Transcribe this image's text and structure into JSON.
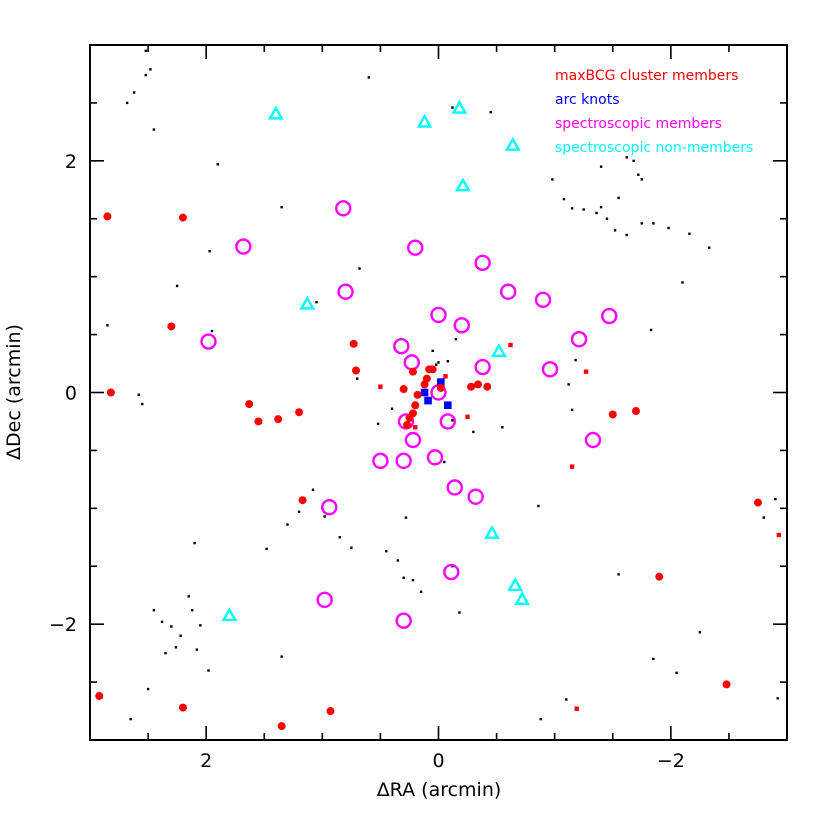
{
  "chart_data": {
    "type": "scatter",
    "xlabel": "ΔRA (arcmin)",
    "ylabel": "ΔDec (arcmin)",
    "xlim": [
      3,
      -3
    ],
    "ylim": [
      -3,
      3
    ],
    "x_ticks": [
      2,
      0,
      -2
    ],
    "y_ticks": [
      2,
      0,
      -2
    ],
    "x_tick_labels": [
      "2",
      "0",
      "−2"
    ],
    "y_tick_labels": [
      "2",
      "0",
      "−2"
    ],
    "grid": false,
    "legend_position": "top-right",
    "colors": {
      "maxbcg": "#ff0000",
      "arc": "#0000ff",
      "spec_members": "#ff00ff",
      "spec_nonmembers": "#00ffff",
      "field": "#000000"
    },
    "series": [
      {
        "name": "maxBCG cluster members",
        "marker": "filled-circle",
        "color": "#ff0000",
        "points": [
          [
            2.85,
            1.52
          ],
          [
            2.2,
            1.51
          ],
          [
            2.3,
            0.57
          ],
          [
            2.82,
            0.0
          ],
          [
            1.63,
            -0.1
          ],
          [
            1.55,
            -0.25
          ],
          [
            1.38,
            -0.23
          ],
          [
            1.2,
            -0.17
          ],
          [
            0.73,
            0.42
          ],
          [
            0.71,
            0.19
          ],
          [
            1.17,
            -0.93
          ],
          [
            2.92,
            -2.62
          ],
          [
            2.2,
            -2.72
          ],
          [
            1.35,
            -2.88
          ],
          [
            0.93,
            -2.75
          ],
          [
            0.3,
            0.03
          ],
          [
            0.22,
            0.18
          ],
          [
            0.18,
            -0.02
          ],
          [
            0.2,
            -0.11
          ],
          [
            0.22,
            -0.18
          ],
          [
            0.25,
            -0.22
          ],
          [
            0.27,
            -0.28
          ],
          [
            0.08,
            0.2
          ],
          [
            0.05,
            0.2
          ],
          [
            0.1,
            0.12
          ],
          [
            0.12,
            0.07
          ],
          [
            -0.02,
            0.04
          ],
          [
            -0.28,
            0.05
          ],
          [
            -0.42,
            0.05
          ],
          [
            -0.34,
            0.07
          ],
          [
            -1.5,
            -0.19
          ],
          [
            -1.7,
            -0.16
          ],
          [
            -1.9,
            -1.59
          ],
          [
            -2.48,
            -2.52
          ],
          [
            -2.75,
            -0.95
          ]
        ]
      },
      {
        "name": "maxBCG cluster members (small)",
        "marker": "filled-square",
        "color": "#ff0000",
        "points": [
          [
            0.5,
            0.05
          ],
          [
            -0.25,
            -0.21
          ],
          [
            -0.62,
            0.41
          ],
          [
            -1.27,
            0.18
          ],
          [
            -1.15,
            -0.64
          ],
          [
            -1.19,
            -2.73
          ],
          [
            -2.93,
            -1.23
          ],
          [
            0.2,
            -0.3
          ],
          [
            -0.06,
            0.14
          ]
        ]
      },
      {
        "name": "arc knots",
        "marker": "filled-square",
        "color": "#0000ff",
        "points": [
          [
            0.12,
            0.0
          ],
          [
            0.09,
            -0.07
          ],
          [
            -0.02,
            0.09
          ],
          [
            -0.08,
            -0.11
          ]
        ]
      },
      {
        "name": "spectroscopic members",
        "marker": "open-circle",
        "color": "#ff00ff",
        "points": [
          [
            0.82,
            1.59
          ],
          [
            1.68,
            1.26
          ],
          [
            0.2,
            1.25
          ],
          [
            -0.38,
            1.12
          ],
          [
            0.8,
            0.87
          ],
          [
            -0.6,
            0.87
          ],
          [
            -0.9,
            0.8
          ],
          [
            1.98,
            0.44
          ],
          [
            0.0,
            0.67
          ],
          [
            -0.2,
            0.58
          ],
          [
            -1.21,
            0.46
          ],
          [
            -1.47,
            0.66
          ],
          [
            0.32,
            0.4
          ],
          [
            0.23,
            0.26
          ],
          [
            -0.38,
            0.22
          ],
          [
            -0.96,
            0.2
          ],
          [
            0.0,
            0.0
          ],
          [
            0.28,
            -0.25
          ],
          [
            -0.08,
            -0.25
          ],
          [
            0.22,
            -0.41
          ],
          [
            0.5,
            -0.59
          ],
          [
            0.3,
            -0.59
          ],
          [
            0.03,
            -0.56
          ],
          [
            -0.14,
            -0.82
          ],
          [
            -0.32,
            -0.9
          ],
          [
            0.94,
            -0.99
          ],
          [
            -1.33,
            -0.41
          ],
          [
            0.98,
            -1.79
          ],
          [
            -0.11,
            -1.55
          ],
          [
            0.3,
            -1.97
          ]
        ]
      },
      {
        "name": "spectroscopic non-members",
        "marker": "open-triangle",
        "color": "#00ffff",
        "points": [
          [
            1.4,
            2.4
          ],
          [
            0.12,
            2.33
          ],
          [
            -0.18,
            2.45
          ],
          [
            -0.64,
            2.13
          ],
          [
            -0.21,
            1.78
          ],
          [
            1.13,
            0.76
          ],
          [
            -0.52,
            0.35
          ],
          [
            -0.46,
            -1.22
          ],
          [
            -0.66,
            -1.67
          ],
          [
            -0.72,
            -1.79
          ],
          [
            1.8,
            -1.93
          ]
        ]
      },
      {
        "name": "field galaxies",
        "marker": "dot",
        "color": "#000000",
        "points": [
          [
            2.52,
            2.95
          ],
          [
            2.48,
            2.79
          ],
          [
            2.52,
            2.74
          ],
          [
            2.62,
            2.59
          ],
          [
            2.68,
            2.5
          ],
          [
            2.45,
            2.27
          ],
          [
            2.85,
            0.58
          ],
          [
            2.58,
            -0.02
          ],
          [
            2.55,
            -0.1
          ],
          [
            1.95,
            0.53
          ],
          [
            1.9,
            1.97
          ],
          [
            1.35,
            1.6
          ],
          [
            1.97,
            1.22
          ],
          [
            2.25,
            0.92
          ],
          [
            1.05,
            0.78
          ],
          [
            0.68,
            1.07
          ],
          [
            2.1,
            -1.3
          ],
          [
            2.45,
            -1.88
          ],
          [
            2.38,
            -1.98
          ],
          [
            2.3,
            -2.02
          ],
          [
            2.22,
            -2.1
          ],
          [
            2.26,
            -2.2
          ],
          [
            2.35,
            -2.25
          ],
          [
            2.15,
            -1.76
          ],
          [
            2.12,
            -1.88
          ],
          [
            2.05,
            -2.01
          ],
          [
            2.08,
            -2.22
          ],
          [
            1.98,
            -2.4
          ],
          [
            2.5,
            -2.56
          ],
          [
            2.65,
            -2.82
          ],
          [
            1.35,
            -2.28
          ],
          [
            1.48,
            -1.35
          ],
          [
            1.3,
            -1.14
          ],
          [
            1.2,
            -1.03
          ],
          [
            1.08,
            -0.84
          ],
          [
            1.0,
            -1.0
          ],
          [
            0.75,
            -1.34
          ],
          [
            0.45,
            -1.37
          ],
          [
            0.35,
            -1.45
          ],
          [
            0.3,
            -1.6
          ],
          [
            0.22,
            -1.62
          ],
          [
            0.15,
            -1.72
          ],
          [
            0.28,
            -1.08
          ],
          [
            0.4,
            -0.14
          ],
          [
            0.52,
            -0.27
          ],
          [
            0.7,
            0.12
          ],
          [
            0.02,
            0.24
          ],
          [
            -0.08,
            0.27
          ],
          [
            0.05,
            0.36
          ],
          [
            -0.15,
            0.46
          ],
          [
            0.0,
            0.26
          ],
          [
            -0.12,
            -0.24
          ],
          [
            -0.3,
            -0.34
          ],
          [
            -0.55,
            -0.3
          ],
          [
            -0.05,
            -0.6
          ],
          [
            -0.18,
            -1.9
          ],
          [
            -0.12,
            -1.5
          ],
          [
            0.6,
            2.72
          ],
          [
            -0.12,
            2.46
          ],
          [
            -0.45,
            2.42
          ],
          [
            -0.98,
            1.84
          ],
          [
            -1.08,
            1.67
          ],
          [
            -1.25,
            1.58
          ],
          [
            -1.15,
            1.59
          ],
          [
            -1.4,
            1.95
          ],
          [
            -1.62,
            2.03
          ],
          [
            -1.68,
            2.0
          ],
          [
            -1.72,
            1.88
          ],
          [
            -1.75,
            1.84
          ],
          [
            -1.55,
            1.68
          ],
          [
            -1.4,
            1.6
          ],
          [
            -1.36,
            1.55
          ],
          [
            -1.45,
            1.5
          ],
          [
            -1.52,
            1.4
          ],
          [
            -1.62,
            1.36
          ],
          [
            -1.75,
            1.46
          ],
          [
            -1.85,
            1.46
          ],
          [
            -1.98,
            1.42
          ],
          [
            -2.16,
            1.37
          ],
          [
            -2.33,
            1.25
          ],
          [
            -2.1,
            0.95
          ],
          [
            -1.83,
            0.54
          ],
          [
            -1.18,
            0.28
          ],
          [
            -1.12,
            0.07
          ],
          [
            -1.15,
            -0.15
          ],
          [
            -0.86,
            -0.98
          ],
          [
            -1.55,
            -1.57
          ],
          [
            -1.85,
            -2.3
          ],
          [
            -2.05,
            -2.42
          ],
          [
            -2.25,
            -2.07
          ],
          [
            -2.9,
            -0.92
          ],
          [
            -2.8,
            -1.08
          ],
          [
            -2.92,
            -2.64
          ],
          [
            -1.1,
            -2.65
          ],
          [
            -0.88,
            -2.82
          ],
          [
            0.98,
            -1.07
          ],
          [
            0.85,
            -1.25
          ]
        ]
      }
    ],
    "legend": [
      {
        "label": "maxBCG cluster members",
        "color": "#ff0000"
      },
      {
        "label": "arc knots",
        "color": "#0000ff"
      },
      {
        "label": "spectroscopic members",
        "color": "#ff00ff"
      },
      {
        "label": "spectroscopic non-members",
        "color": "#00ffff"
      }
    ]
  }
}
